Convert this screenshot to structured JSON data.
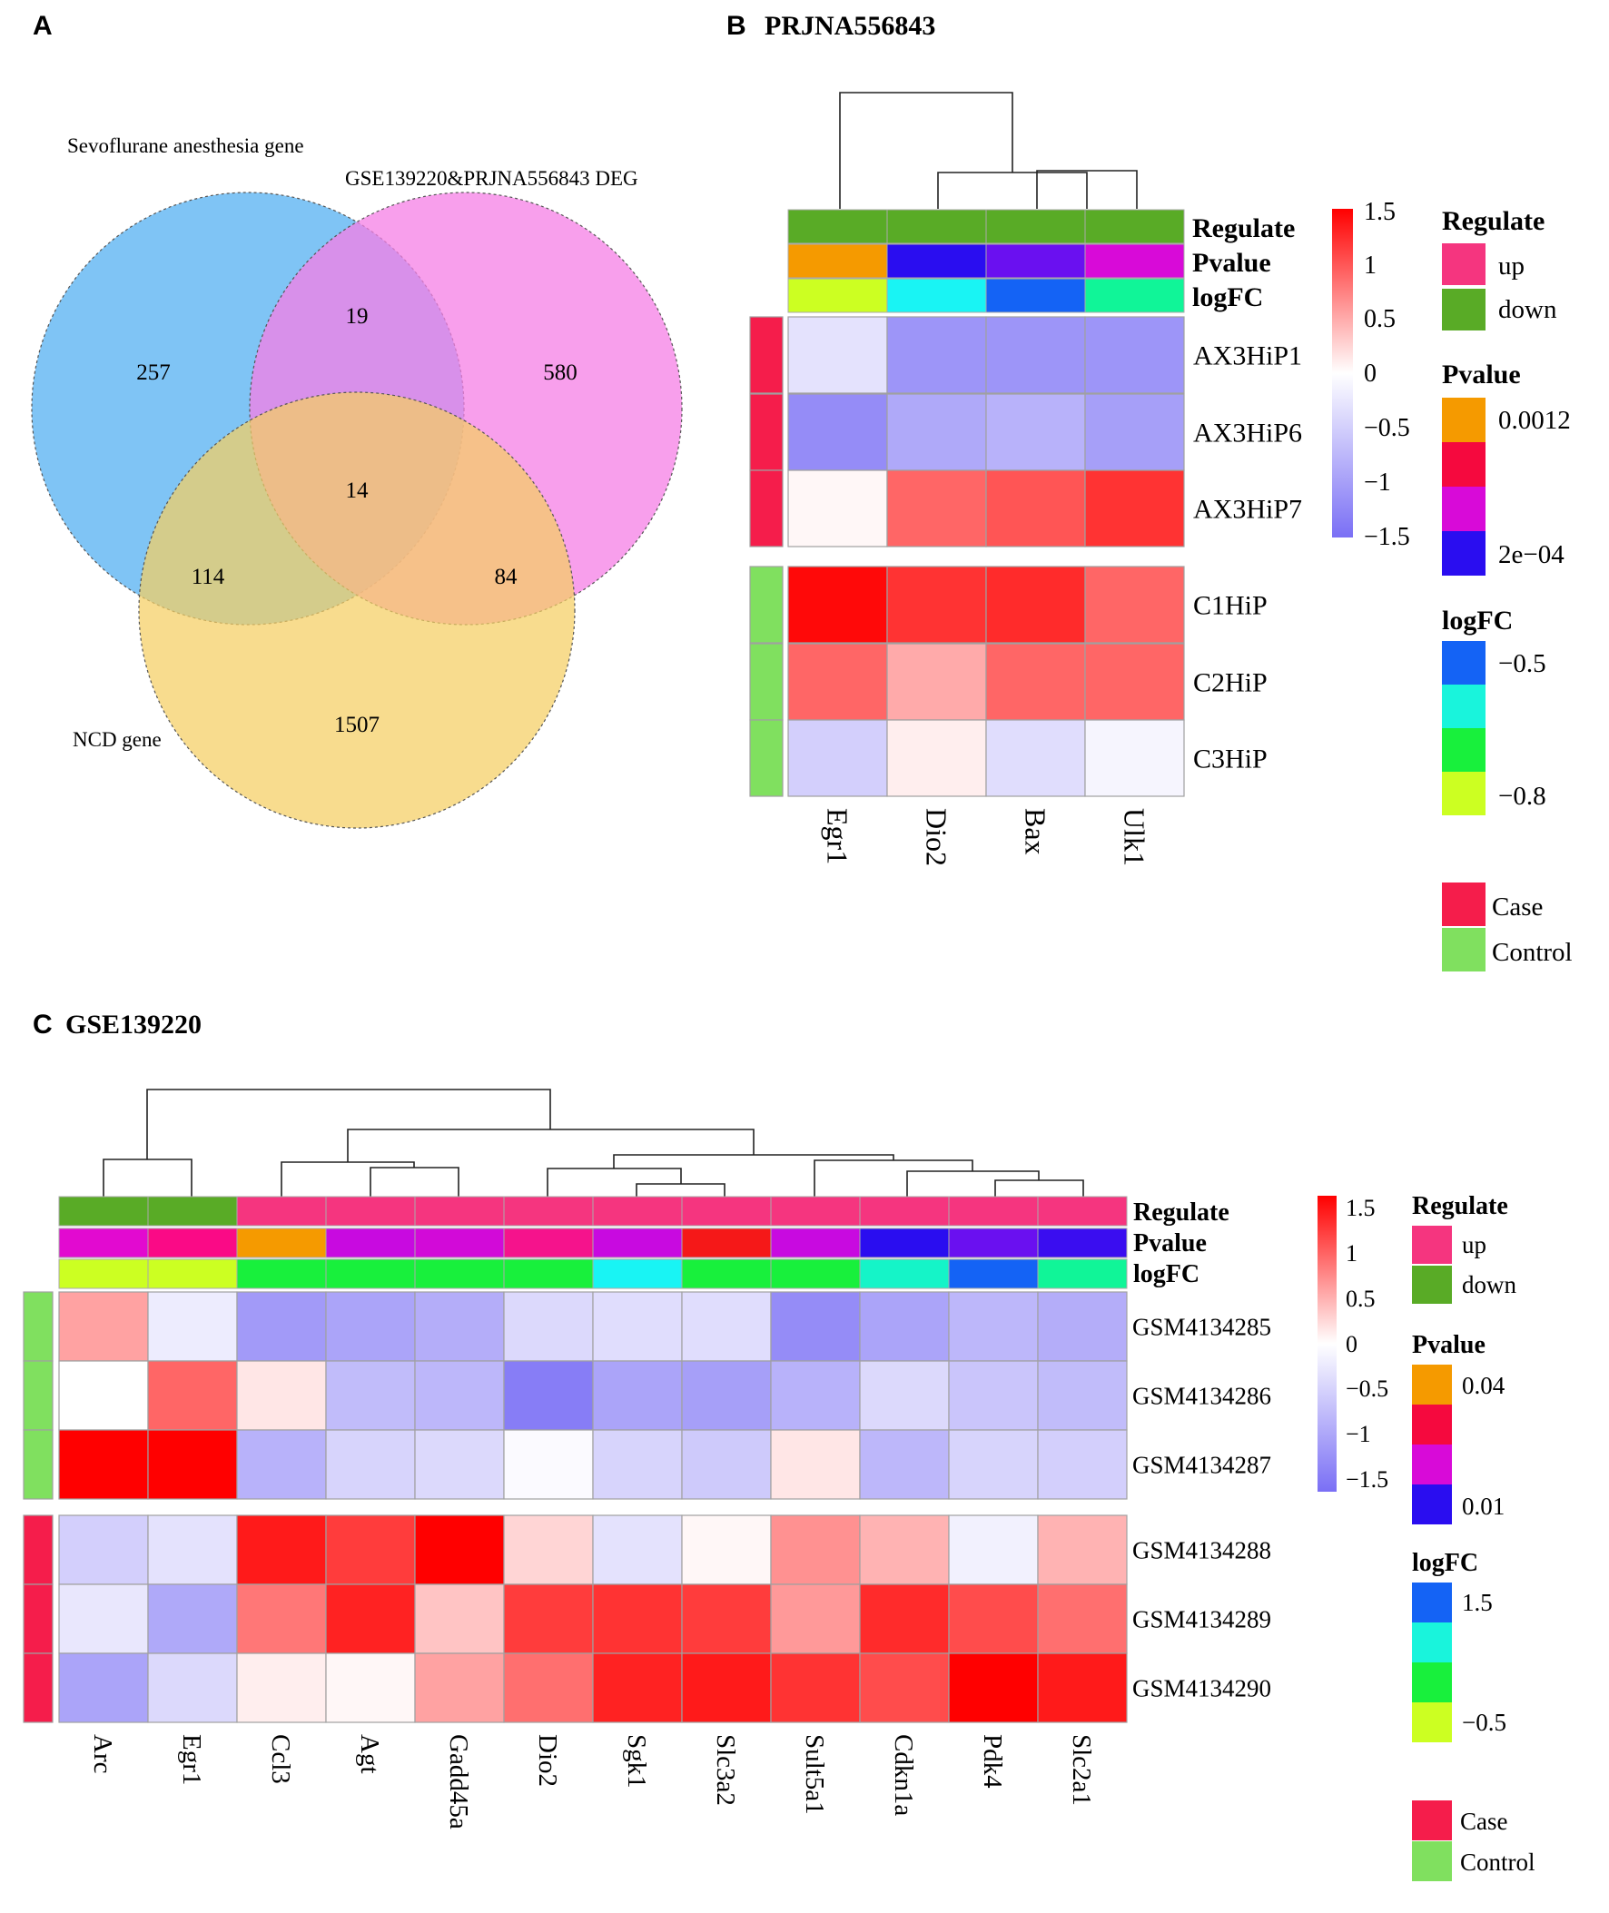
{
  "panels": {
    "a": {
      "letter": "A"
    },
    "b": {
      "letter": "B",
      "title": "PRJNA556843"
    },
    "c": {
      "letter": "C",
      "title": "GSE139220"
    }
  },
  "venn": {
    "sets": [
      {
        "name": "Sevoflurane anesthesia gene",
        "color": "#7fc4f5"
      },
      {
        "name": "GSE139220&PRJNA556843 DEG",
        "color": "#f57fe6"
      },
      {
        "name": "NCD gene",
        "color": "#f5d47f"
      }
    ],
    "counts": {
      "sevo_only": "257",
      "deg_only": "580",
      "ncd_only": "1507",
      "sevo_deg": "19",
      "sevo_ncd": "114",
      "deg_ncd": "84",
      "all": "14"
    }
  },
  "chart_data": [
    {
      "type": "heatmap",
      "title": "PRJNA556843",
      "columns": [
        "Egr1",
        "Dio2",
        "Bax",
        "Ulk1"
      ],
      "rows": [
        "AX3HiP1",
        "AX3HiP6",
        "AX3HiP7",
        "C1HiP",
        "C2HiP",
        "C3HiP"
      ],
      "row_groups": [
        "Case",
        "Case",
        "Case",
        "Control",
        "Control",
        "Control"
      ],
      "values": [
        [
          -0.3,
          -1.1,
          -1.1,
          -1.1
        ],
        [
          -1.2,
          -0.9,
          -0.8,
          -1.0
        ],
        [
          0.05,
          0.9,
          1.0,
          1.2
        ],
        [
          1.45,
          1.2,
          1.25,
          0.9
        ],
        [
          0.9,
          0.5,
          0.9,
          0.9
        ],
        [
          -0.5,
          0.1,
          -0.35,
          -0.1
        ]
      ],
      "annotations": {
        "Regulate": [
          "down",
          "down",
          "down",
          "down"
        ],
        "Pvalue": [
          "#f59a00",
          "#2a0df0",
          "#6a10f0",
          "#d80ad8"
        ],
        "logFC": [
          "#ccff22",
          "#19f4f4",
          "#1463f5",
          "#10f598"
        ]
      },
      "annotation_labels": [
        "Regulate",
        "Pvalue",
        "logFC"
      ],
      "color_scale": {
        "ticks": [
          "1.5",
          "1",
          "0.5",
          "0",
          "−0.5",
          "−1",
          "−1.5"
        ],
        "range": [
          -1.5,
          1.5
        ]
      },
      "legend": {
        "regulate": {
          "title": "Regulate",
          "up": "up",
          "down": "down"
        },
        "pvalue": {
          "title": "Pvalue",
          "high": "0.0012",
          "low": "2e−04"
        },
        "logfc": {
          "title": "logFC",
          "high": "−0.5",
          "low": "−0.8"
        },
        "group": {
          "case": "Case",
          "control": "Control"
        }
      }
    },
    {
      "type": "heatmap",
      "title": "GSE139220",
      "columns": [
        "Arc",
        "Egr1",
        "Ccl3",
        "Agt",
        "Gadd45a",
        "Dio2",
        "Sgk1",
        "Slc3a2",
        "Sult5a1",
        "Cdkn1a",
        "Pdk4",
        "Slc2a1"
      ],
      "rows": [
        "GSM4134285",
        "GSM4134286",
        "GSM4134287",
        "GSM4134288",
        "GSM4134289",
        "GSM4134290"
      ],
      "row_groups": [
        "Control",
        "Control",
        "Control",
        "Case",
        "Case",
        "Case"
      ],
      "values": [
        [
          0.55,
          -0.2,
          -1.05,
          -0.95,
          -0.85,
          -0.4,
          -0.35,
          -0.35,
          -1.2,
          -0.95,
          -0.75,
          -0.85
        ],
        [
          0.0,
          0.9,
          0.15,
          -0.7,
          -0.75,
          -1.35,
          -0.95,
          -1.0,
          -0.8,
          -0.4,
          -0.6,
          -0.7
        ],
        [
          1.5,
          1.5,
          -0.8,
          -0.45,
          -0.4,
          -0.05,
          -0.45,
          -0.55,
          0.15,
          -0.75,
          -0.45,
          -0.5
        ],
        [
          -0.5,
          -0.3,
          1.35,
          1.15,
          1.5,
          0.25,
          -0.3,
          0.05,
          0.65,
          0.45,
          -0.15,
          0.45
        ],
        [
          -0.25,
          -0.9,
          0.8,
          1.3,
          0.35,
          1.15,
          1.2,
          1.15,
          0.6,
          1.25,
          1.05,
          0.85
        ],
        [
          -0.95,
          -0.4,
          0.1,
          0.05,
          0.55,
          0.85,
          1.3,
          1.35,
          1.2,
          1.05,
          1.5,
          1.35
        ]
      ],
      "annotations": {
        "Regulate": [
          "down",
          "down",
          "up",
          "up",
          "up",
          "up",
          "up",
          "up",
          "up",
          "up",
          "up",
          "up"
        ],
        "Pvalue": [
          "#e20ad0",
          "#fa0a86",
          "#f59a00",
          "#c80ae0",
          "#d20ad8",
          "#f5138c",
          "#c80ae0",
          "#f51818",
          "#c80ae0",
          "#2a0df0",
          "#6a10f0",
          "#3a0df0"
        ],
        "logFC": [
          "#ccff22",
          "#ccff22",
          "#18f03c",
          "#18f03c",
          "#18f03c",
          "#18f03c",
          "#19f4f4",
          "#18f03c",
          "#18f03c",
          "#15f4c8",
          "#1463f5",
          "#10f598"
        ]
      },
      "annotation_labels": [
        "Regulate",
        "Pvalue",
        "logFC"
      ],
      "color_scale": {
        "ticks": [
          "1.5",
          "1",
          "0.5",
          "0",
          "−0.5",
          "−1",
          "−1.5"
        ],
        "range": [
          -1.5,
          1.5
        ]
      },
      "legend": {
        "regulate": {
          "title": "Regulate",
          "up": "up",
          "down": "down"
        },
        "pvalue": {
          "title": "Pvalue",
          "high": "0.04",
          "low": "0.01"
        },
        "logfc": {
          "title": "logFC",
          "high": "1.5",
          "low": "−0.5"
        },
        "group": {
          "case": "Case",
          "control": "Control"
        }
      }
    }
  ],
  "colors": {
    "up": "#f5357f",
    "down": "#59ab26",
    "case": "#f51d4b",
    "control": "#80e05f",
    "low": "#7a6ff5",
    "mid": "#ffffff",
    "high": "#ff0000"
  }
}
